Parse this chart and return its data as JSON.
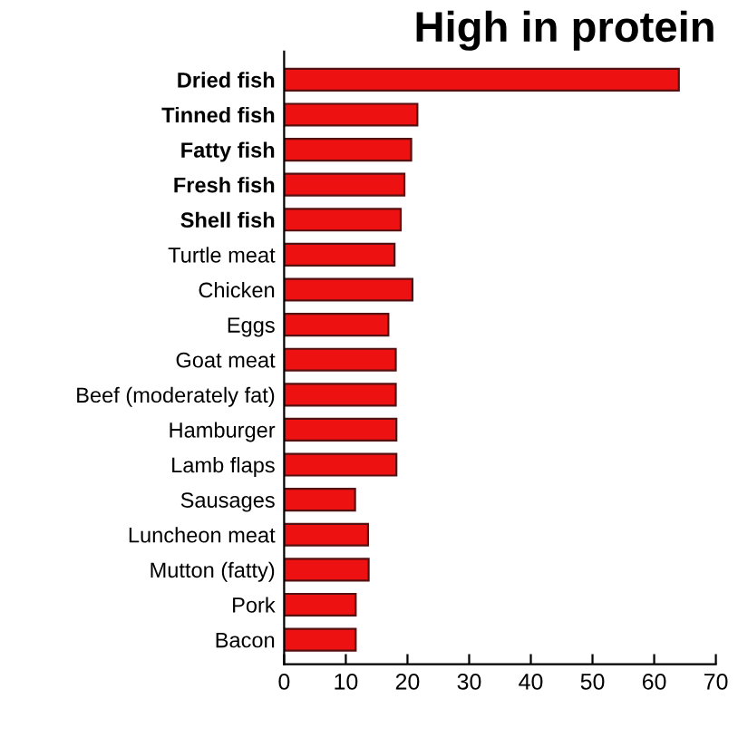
{
  "chart_data": {
    "type": "bar",
    "orientation": "horizontal",
    "title": "High in protein",
    "categories": [
      "Dried fish",
      "Tinned fish",
      "Fatty fish",
      "Fresh fish",
      "Shell fish",
      "Turtle meat",
      "Chicken",
      "Eggs",
      "Goat meat",
      "Beef (moderately fat)",
      "Hamburger",
      "Lamb flaps",
      "Sausages",
      "Luncheon meat",
      "Mutton (fatty)",
      "Pork",
      "Bacon"
    ],
    "values": [
      64,
      21.6,
      20.6,
      19.5,
      18.9,
      17.9,
      20.8,
      16.9,
      18.1,
      18.1,
      18.2,
      18.2,
      11.5,
      13.6,
      13.7,
      11.6,
      11.6
    ],
    "color": "#ee1111",
    "xlim": [
      0,
      70
    ],
    "xticks": [
      0,
      10,
      20,
      30,
      40,
      50,
      60,
      70
    ],
    "grid": false
  }
}
